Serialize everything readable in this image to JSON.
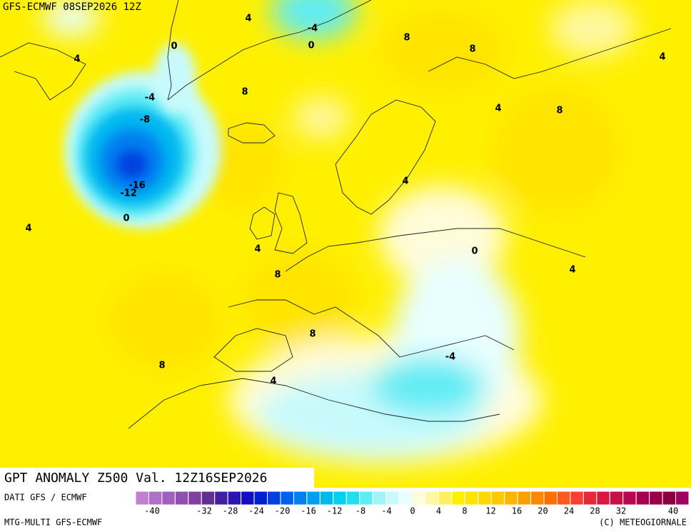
{
  "header": {
    "run": "GFS-ECMWF 08SEP2026 12Z"
  },
  "title": "GPT ANOMALY Z500 Val. 12Z16SEP2026",
  "footer": {
    "data_source": "DATI GFS / ECMWF",
    "product": "MTG-MULTI GFS-ECMWF",
    "credit": "(C) METEOGIORNALE"
  },
  "contour_labels": [
    "4",
    "-4",
    "0",
    "8",
    "8",
    "0",
    "4",
    "-4",
    "8",
    "4",
    "8",
    "-8",
    "4",
    "-16",
    "-12",
    "4",
    "0",
    "4",
    "4",
    "0",
    "8",
    "4",
    "8",
    "-4",
    "8",
    "4"
  ],
  "colorbar": {
    "colors": [
      "#c080d0",
      "#b070c8",
      "#a060c0",
      "#9050b0",
      "#8040a0",
      "#603090",
      "#4020a0",
      "#2818b0",
      "#1010c0",
      "#0020d0",
      "#0040e0",
      "#0060f0",
      "#0080f0",
      "#00a0f0",
      "#00b8f0",
      "#00d0f0",
      "#20e0f0",
      "#60ecf4",
      "#a0f4f8",
      "#c8fafc",
      "#e8feff",
      "#fffcd8",
      "#fff8a0",
      "#fff060",
      "#fff000",
      "#ffe400",
      "#ffd800",
      "#ffc800",
      "#ffb400",
      "#ffa000",
      "#ff8800",
      "#ff7000",
      "#ff5820",
      "#f84030",
      "#e82838",
      "#d81840",
      "#c81048",
      "#b80850",
      "#a80050",
      "#980048",
      "#880040",
      "#a00060"
    ],
    "ticks": [
      -40,
      -32,
      -28,
      -24,
      -20,
      -16,
      -12,
      -8,
      -4,
      0,
      4,
      8,
      12,
      16,
      20,
      24,
      28,
      32,
      40
    ]
  }
}
